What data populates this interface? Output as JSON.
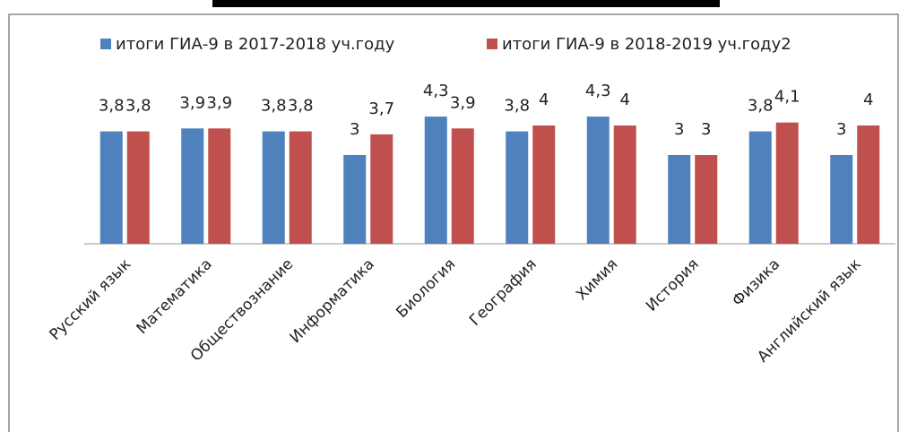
{
  "chart_data": {
    "type": "bar",
    "categories": [
      "Русский язык",
      "Математика",
      "Обществознание",
      "Информатика",
      "Биология",
      "География",
      "Химия",
      "История",
      "Физика",
      "Английский язык"
    ],
    "series": [
      {
        "name": "итоги ГИА-9 в 2017-2018 уч.году",
        "color": "#4f81bd",
        "values": [
          3.8,
          3.9,
          3.8,
          3,
          4.3,
          3.8,
          4.3,
          3,
          3.8,
          3
        ],
        "value_labels": [
          "3,8",
          "3,9",
          "3,8",
          "3",
          "4,3",
          "3,8",
          "4,3",
          "3",
          "3,8",
          "3"
        ]
      },
      {
        "name": "итоги ГИА-9 в 2018-2019 уч.году2",
        "color": "#c0504d",
        "values": [
          3.8,
          3.9,
          3.8,
          3.7,
          3.9,
          4,
          4,
          3,
          4.1,
          4
        ],
        "value_labels": [
          "3,8",
          "3,9",
          "3,8",
          "3,7",
          "3,9",
          "4",
          "4",
          "3",
          "4,1",
          "4"
        ]
      }
    ],
    "ylim": [
      0,
      6
    ],
    "legend": "top"
  }
}
